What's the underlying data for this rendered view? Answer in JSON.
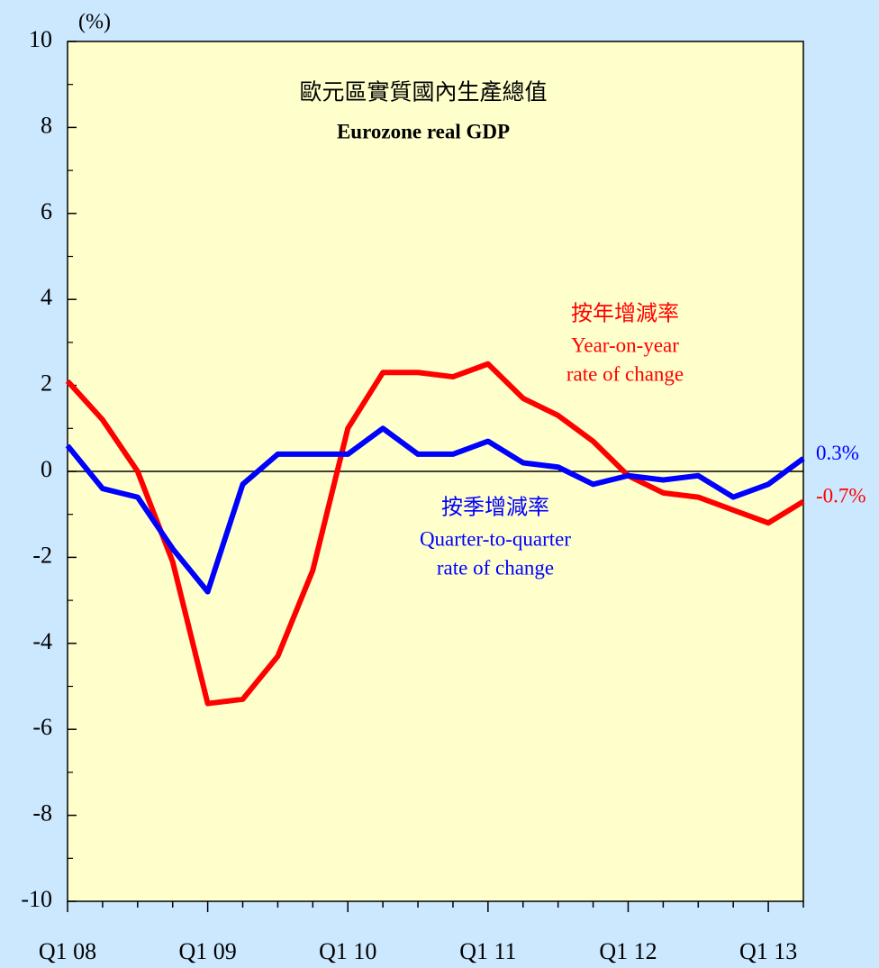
{
  "chart_data": {
    "type": "line",
    "title": "歐元區實質國內生產總值",
    "subtitle": "Eurozone real GDP",
    "y_unit": "(%)",
    "categories": [
      "Q1 08",
      null,
      null,
      null,
      "Q1 09",
      null,
      null,
      null,
      "Q1 10",
      null,
      null,
      null,
      "Q1 11",
      null,
      null,
      null,
      "Q1 12",
      null,
      null,
      null,
      "Q1 13",
      null
    ],
    "series": [
      {
        "name": "按年增減率",
        "label_lines": [
          "Year-on-year",
          "rate of change"
        ],
        "color": "#ff0000",
        "values": [
          2.1,
          1.2,
          0.0,
          -2.1,
          -5.4,
          -5.3,
          -4.3,
          -2.3,
          1.0,
          2.3,
          2.3,
          2.2,
          2.5,
          1.7,
          1.3,
          0.7,
          -0.1,
          -0.5,
          -0.6,
          -0.9,
          -1.2,
          -0.7
        ],
        "value_labels": [
          null,
          null,
          null,
          null,
          null,
          null,
          null,
          null,
          null,
          null,
          null,
          null,
          null,
          null,
          null,
          null,
          null,
          null,
          null,
          null,
          null,
          "-0.7%"
        ]
      },
      {
        "name": "按季增減率",
        "label_lines": [
          "Quarter-to-quarter",
          "rate of change"
        ],
        "color": "#0000ff",
        "values": [
          0.6,
          -0.4,
          -0.6,
          -1.8,
          -2.8,
          -0.3,
          0.4,
          0.4,
          0.4,
          1.0,
          0.4,
          0.4,
          0.7,
          0.2,
          0.1,
          -0.3,
          -0.1,
          -0.2,
          -0.1,
          -0.6,
          -0.3,
          0.3
        ],
        "value_labels": [
          null,
          null,
          null,
          null,
          null,
          null,
          null,
          null,
          null,
          null,
          null,
          null,
          null,
          null,
          null,
          null,
          null,
          null,
          null,
          null,
          null,
          "0.3%"
        ]
      }
    ],
    "ylim": [
      -10,
      10
    ],
    "yticks": [
      -10,
      -8,
      -6,
      -4,
      -2,
      0,
      2,
      4,
      6,
      8,
      10
    ],
    "plot_background": "#ffffcc"
  }
}
